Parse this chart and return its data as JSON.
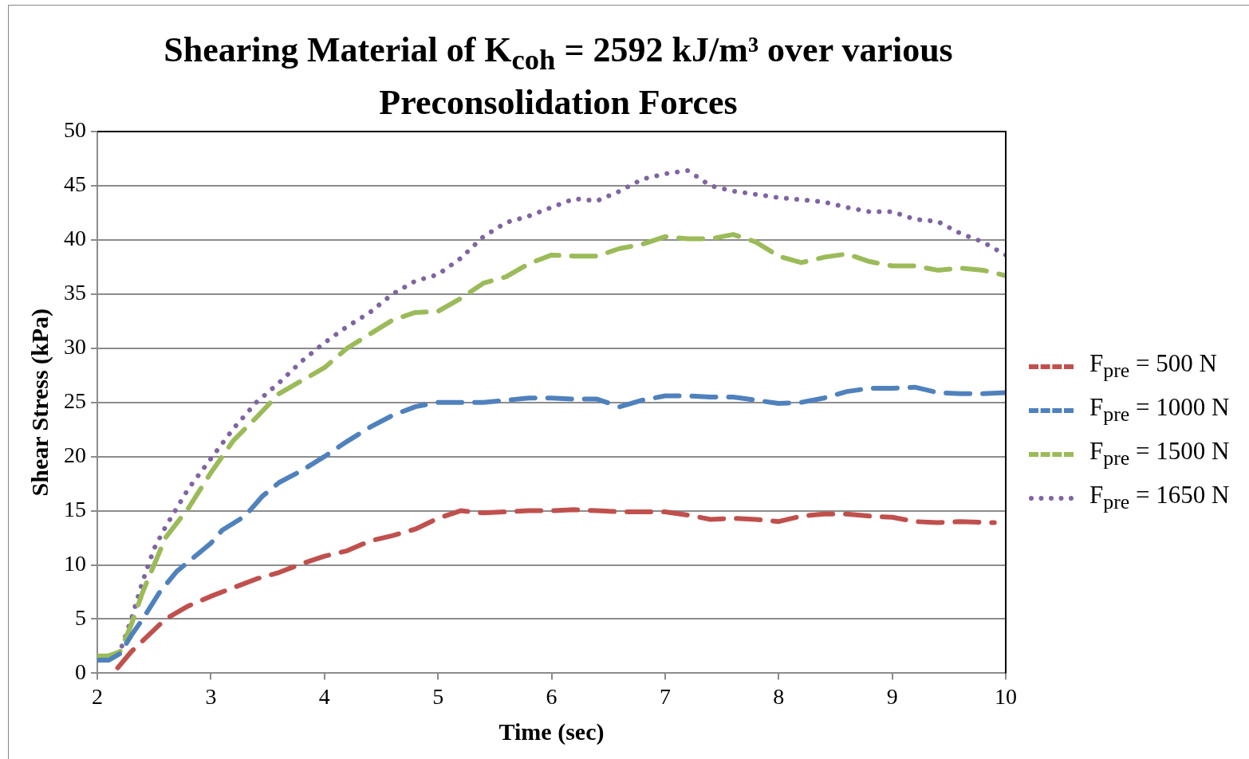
{
  "chart_data": {
    "type": "line",
    "title": "Shearing Material of K$_{coh}$ = 2592 kJ/m³ over various Preconsolidation Forces",
    "xlabel": "Time (sec)",
    "ylabel": "Shear Stress (kPa)",
    "xlim": [
      2,
      10
    ],
    "xticks": [
      2,
      3,
      4,
      5,
      6,
      7,
      8,
      9,
      10
    ],
    "ylim": [
      0,
      50
    ],
    "yticks": [
      0,
      5,
      10,
      15,
      20,
      25,
      30,
      35,
      40,
      45,
      50
    ],
    "grid": "y",
    "legend": "right",
    "series": [
      {
        "name": "F$_{pre}$ = 500 N",
        "color": "#c0504d",
        "line_style": "dashed",
        "x": [
          2.18,
          2.3,
          2.45,
          2.6,
          2.8,
          3.0,
          3.2,
          3.4,
          3.6,
          3.8,
          4.0,
          4.2,
          4.4,
          4.6,
          4.8,
          5.0,
          5.2,
          5.4,
          5.6,
          5.8,
          6.0,
          6.2,
          6.4,
          6.6,
          6.8,
          7.0,
          7.2,
          7.4,
          7.6,
          7.8,
          8.0,
          8.2,
          8.4,
          8.6,
          8.8,
          9.0,
          9.2,
          9.4,
          9.6,
          9.9
        ],
        "values": [
          0.5,
          2,
          3.5,
          5,
          6.2,
          7.1,
          7.9,
          8.7,
          9.3,
          10.1,
          10.8,
          11.3,
          12.2,
          12.7,
          13.3,
          14.3,
          15,
          14.8,
          14.9,
          15,
          15,
          15.1,
          15,
          14.9,
          14.9,
          14.9,
          14.6,
          14.2,
          14.3,
          14.2,
          14,
          14.5,
          14.7,
          14.7,
          14.5,
          14.4,
          14,
          13.9,
          14,
          13.9
        ]
      },
      {
        "name": "F$_{pre}$ = 1000 N",
        "color": "#4f81bd",
        "line_style": "dashed",
        "x": [
          2.0,
          2.1,
          2.2,
          2.3,
          2.4,
          2.55,
          2.7,
          2.85,
          3.0,
          3.1,
          3.3,
          3.45,
          3.6,
          3.8,
          4.0,
          4.2,
          4.4,
          4.6,
          4.8,
          5.0,
          5.2,
          5.4,
          5.6,
          5.8,
          6.0,
          6.2,
          6.4,
          6.6,
          6.8,
          7.0,
          7.2,
          7.4,
          7.6,
          7.8,
          8.0,
          8.2,
          8.4,
          8.6,
          8.8,
          9.0,
          9.2,
          9.4,
          9.6,
          9.8,
          10.0
        ],
        "values": [
          1.2,
          1.2,
          1.8,
          3.5,
          5,
          7.5,
          9.4,
          10.7,
          12,
          13.2,
          14.5,
          16.3,
          17.6,
          18.7,
          20,
          21.4,
          22.7,
          23.8,
          24.6,
          25,
          25,
          25,
          25.2,
          25.4,
          25.4,
          25.3,
          25.3,
          24.6,
          25.2,
          25.6,
          25.6,
          25.5,
          25.5,
          25.2,
          24.9,
          25,
          25.4,
          26,
          26.3,
          26.3,
          26.4,
          25.9,
          25.8,
          25.8,
          25.9
        ]
      },
      {
        "name": "F$_{pre}$ = 1500 N",
        "color": "#9bbb59",
        "line_style": "dashed",
        "x": [
          2.0,
          2.1,
          2.2,
          2.3,
          2.4,
          2.5,
          2.6,
          2.8,
          3.0,
          3.2,
          3.4,
          3.6,
          3.8,
          4.0,
          4.2,
          4.4,
          4.6,
          4.8,
          5.0,
          5.2,
          5.4,
          5.6,
          5.8,
          6.0,
          6.2,
          6.4,
          6.6,
          6.8,
          7.0,
          7.2,
          7.4,
          7.6,
          7.8,
          8.0,
          8.2,
          8.4,
          8.6,
          8.8,
          9.0,
          9.2,
          9.4,
          9.6,
          9.8,
          10.0
        ],
        "values": [
          1.6,
          1.6,
          2,
          4.5,
          7.5,
          10,
          12.5,
          15.2,
          18.5,
          21.5,
          23.6,
          25.8,
          27,
          28.2,
          30,
          31.3,
          32.6,
          33.3,
          33.4,
          34.6,
          36,
          36.6,
          37.8,
          38.6,
          38.5,
          38.5,
          39.2,
          39.6,
          40.3,
          40.1,
          40.1,
          40.5,
          39.8,
          38.5,
          37.9,
          38.4,
          38.7,
          38,
          37.6,
          37.6,
          37.2,
          37.4,
          37.2,
          36.7
        ]
      },
      {
        "name": "F$_{pre}$ = 1650 N",
        "color": "#8064a2",
        "line_style": "dotted",
        "x": [
          2.0,
          2.1,
          2.2,
          2.3,
          2.4,
          2.5,
          2.6,
          2.8,
          3.0,
          3.2,
          3.4,
          3.6,
          3.8,
          4.0,
          4.2,
          4.4,
          4.6,
          4.8,
          5.0,
          5.2,
          5.4,
          5.6,
          5.8,
          6.0,
          6.2,
          6.4,
          6.6,
          6.8,
          7.0,
          7.2,
          7.4,
          7.6,
          7.8,
          8.0,
          8.2,
          8.4,
          8.6,
          8.8,
          9.0,
          9.2,
          9.4,
          9.6,
          9.8,
          10.0
        ],
        "values": [
          1.2,
          1.2,
          2,
          5,
          8.5,
          11.5,
          13.5,
          17,
          19.8,
          22.6,
          25,
          26.8,
          28.8,
          30.5,
          32,
          33.3,
          35,
          36.2,
          36.8,
          38.3,
          40.3,
          41.6,
          42.2,
          43,
          43.8,
          43.6,
          44.5,
          45.6,
          46.1,
          46.4,
          45,
          44.5,
          44.2,
          43.9,
          43.7,
          43.5,
          43,
          42.6,
          42.6,
          41.9,
          41.7,
          40.6,
          39.8,
          38.6
        ]
      }
    ]
  }
}
